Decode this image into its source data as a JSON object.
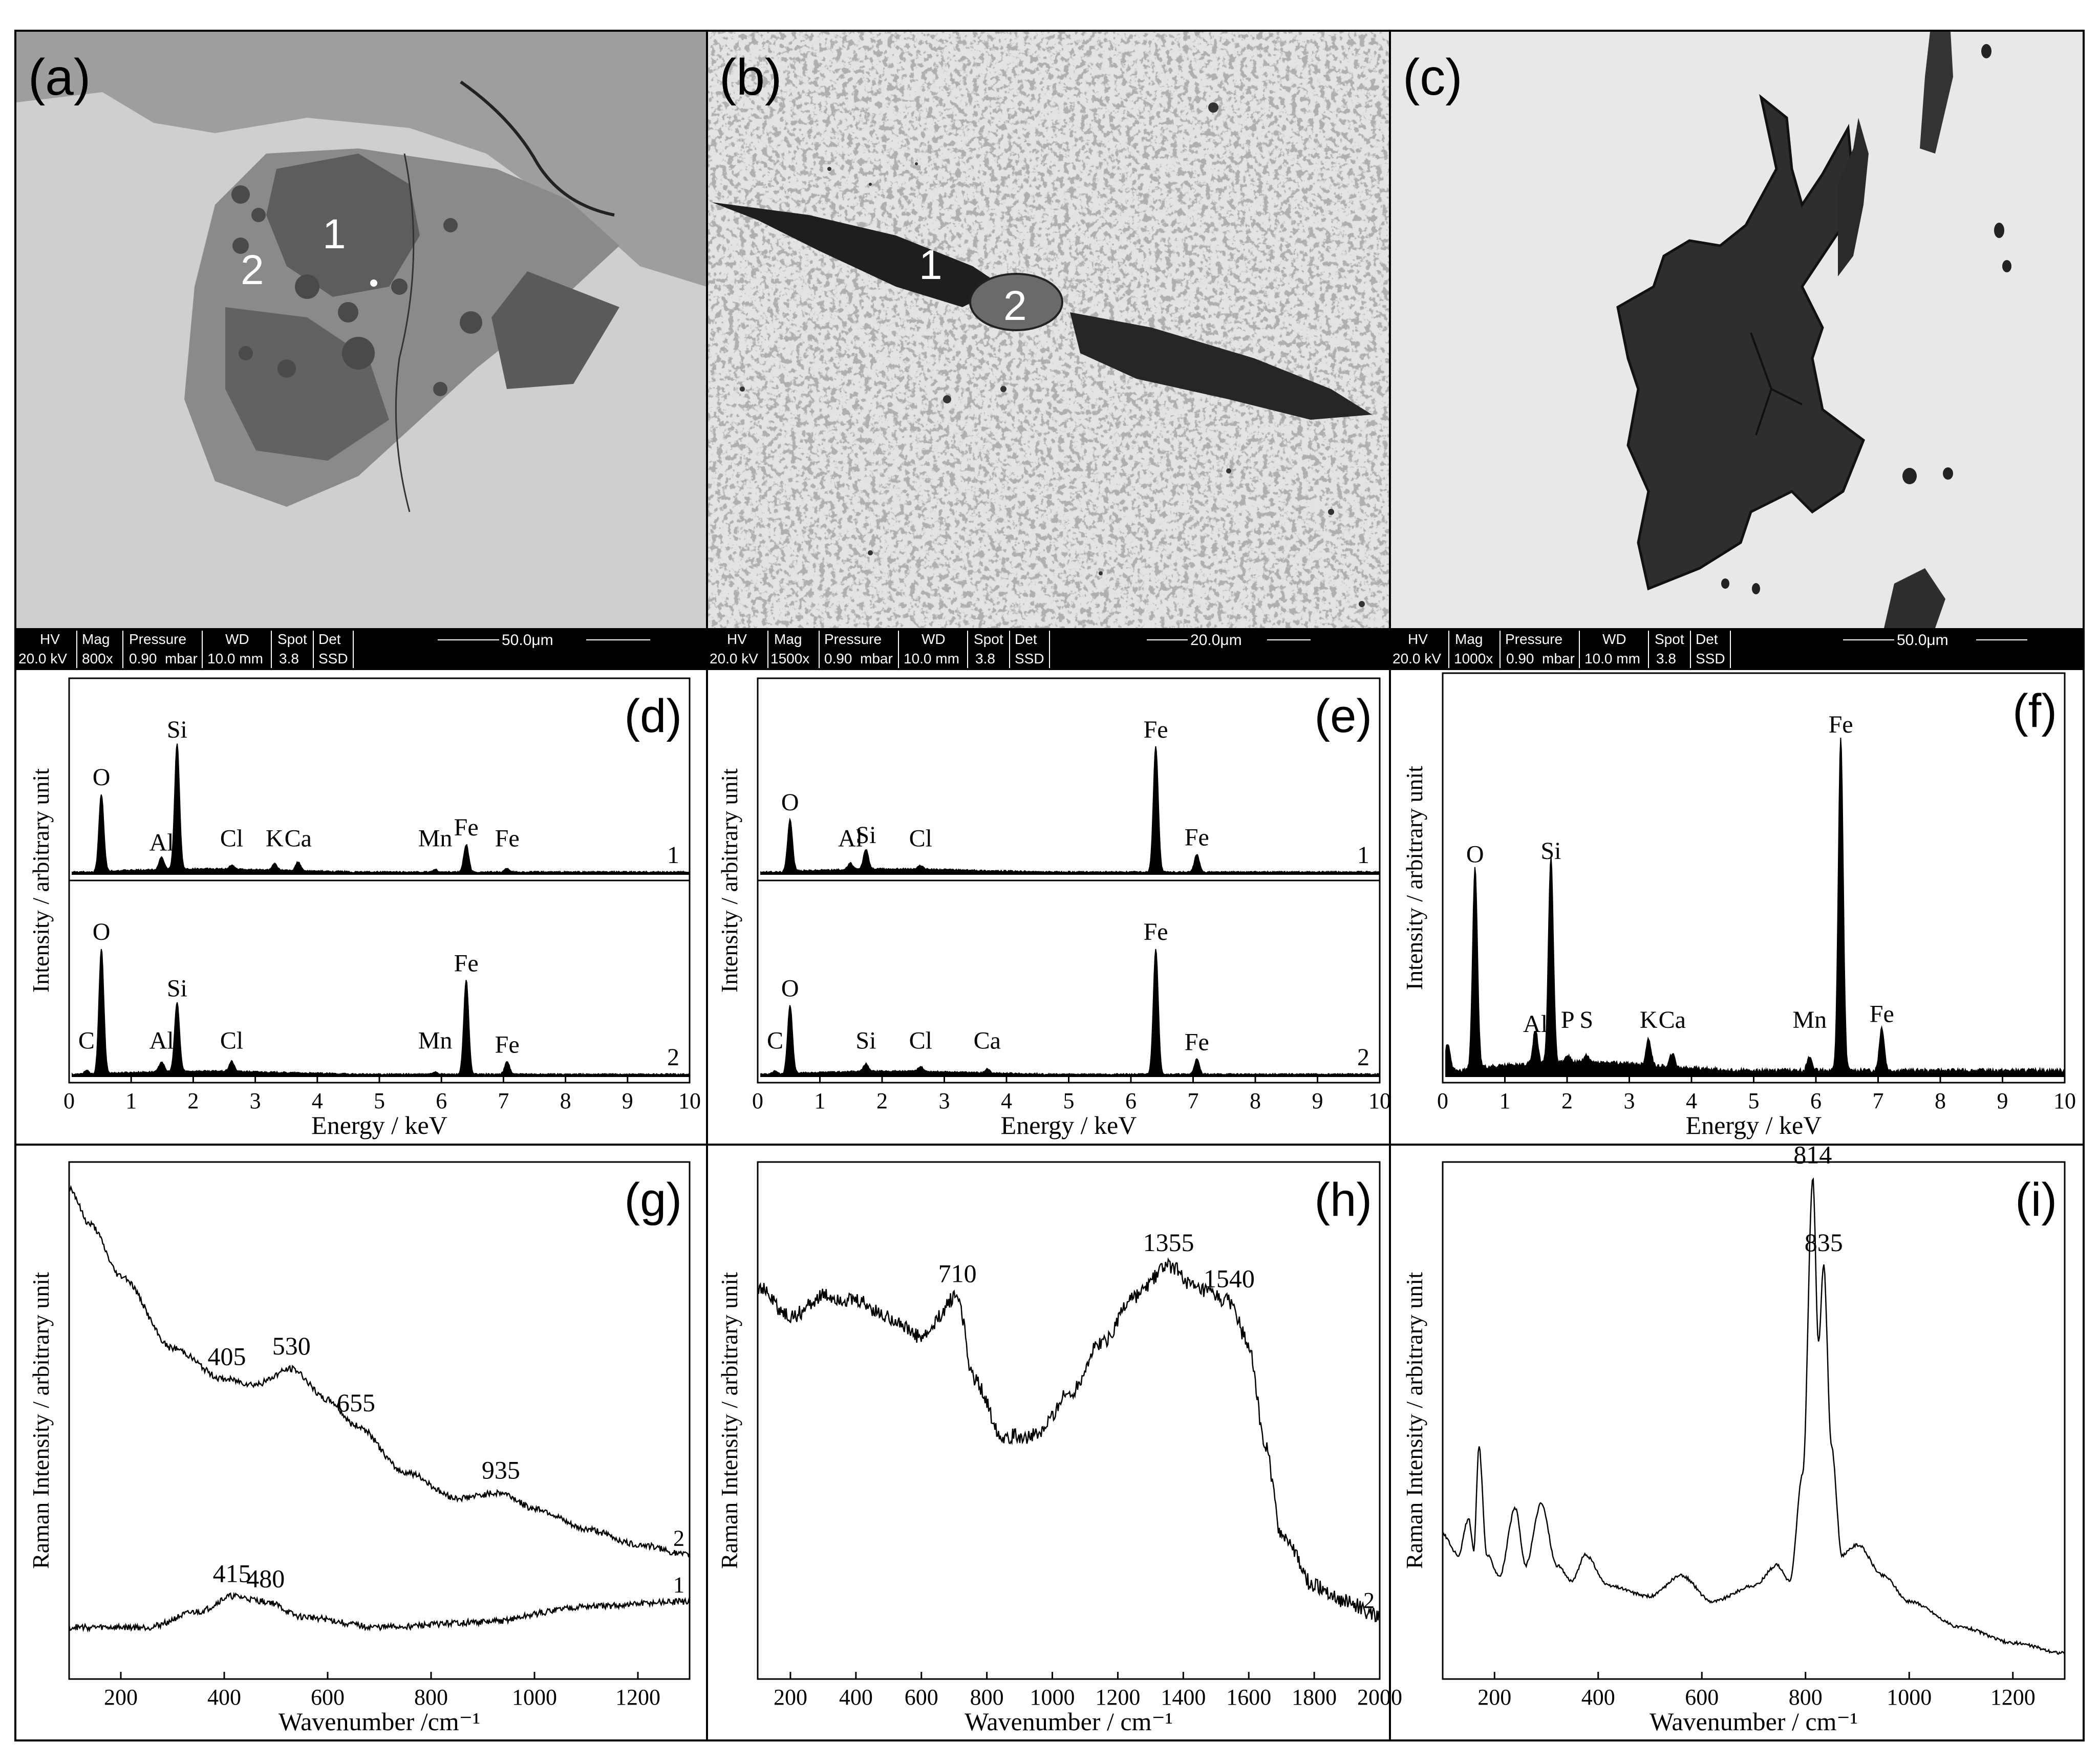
{
  "figure": {
    "panels": {
      "a": {
        "label": "(a)",
        "markers": [
          "1",
          "2"
        ],
        "bar": {
          "hv": "HV",
          "mag": "Mag",
          "pressure": "Pressure",
          "wd": "WD",
          "spot": "Spot",
          "det": "Det",
          "hv_v": "20.0 kV",
          "mag_v": "800x",
          "pressure_v": "0.90",
          "pressure_u": "mbar",
          "wd_v": "10.0 mm",
          "spot_v": "3.8",
          "det_v": "SSD",
          "scale": "50.0μm"
        }
      },
      "b": {
        "label": "(b)",
        "markers": [
          "1",
          "2"
        ],
        "bar": {
          "hv": "HV",
          "mag": "Mag",
          "pressure": "Pressure",
          "wd": "WD",
          "spot": "Spot",
          "det": "Det",
          "hv_v": "20.0 kV",
          "mag_v": "1500x",
          "pressure_v": "0.90",
          "pressure_u": "mbar",
          "wd_v": "10.0 mm",
          "spot_v": "3.8",
          "det_v": "SSD",
          "scale": "20.0μm"
        }
      },
      "c": {
        "label": "(c)",
        "bar": {
          "hv": "HV",
          "mag": "Mag",
          "pressure": "Pressure",
          "wd": "WD",
          "spot": "Spot",
          "det": "Det",
          "hv_v": "20.0 kV",
          "mag_v": "1000x",
          "pressure_v": "0.90",
          "pressure_u": "mbar",
          "wd_v": "10.0 mm",
          "spot_v": "3.8",
          "det_v": "SSD",
          "scale": "50.0μm"
        }
      }
    }
  },
  "chart_data": [
    {
      "id": "d",
      "panel_label": "(d)",
      "type": "line",
      "xlabel": "Energy / keV",
      "ylabel": "Intensity / arbitrary unit",
      "xlim": [
        0,
        10
      ],
      "xticks": [
        0,
        1,
        2,
        3,
        4,
        5,
        6,
        7,
        8,
        9,
        10
      ],
      "series": [
        {
          "name": "1",
          "peaks": [
            [
              0.52,
              0.62
            ],
            [
              1.49,
              0.1
            ],
            [
              1.74,
              1.0
            ],
            [
              2.62,
              0.03
            ],
            [
              3.31,
              0.05
            ],
            [
              3.69,
              0.07
            ],
            [
              5.9,
              0.02
            ],
            [
              6.4,
              0.22
            ],
            [
              7.06,
              0.03
            ]
          ],
          "peak_labels": [
            [
              "O",
              0.52
            ],
            [
              "Al",
              1.49
            ],
            [
              "Si",
              1.74
            ],
            [
              "Cl",
              2.62
            ],
            [
              "K",
              3.31
            ],
            [
              "Ca",
              3.69
            ],
            [
              "Mn",
              5.9
            ],
            [
              "Fe",
              6.4
            ],
            [
              "Fe",
              7.06
            ]
          ]
        },
        {
          "name": "2",
          "peaks": [
            [
              0.28,
              0.03
            ],
            [
              0.52,
              1.0
            ],
            [
              1.49,
              0.08
            ],
            [
              1.74,
              0.55
            ],
            [
              2.62,
              0.08
            ],
            [
              5.9,
              0.02
            ],
            [
              6.4,
              0.75
            ],
            [
              7.06,
              0.1
            ]
          ],
          "peak_labels": [
            [
              "C",
              0.28
            ],
            [
              "O",
              0.52
            ],
            [
              "Al",
              1.49
            ],
            [
              "Si",
              1.74
            ],
            [
              "Cl",
              2.62
            ],
            [
              "Mn",
              5.9
            ],
            [
              "Fe",
              6.4
            ],
            [
              "Fe",
              7.06
            ]
          ]
        }
      ]
    },
    {
      "id": "e",
      "panel_label": "(e)",
      "type": "line",
      "xlabel": "Energy / keV",
      "ylabel": "Intensity / arbitrary unit",
      "xlim": [
        0,
        10
      ],
      "xticks": [
        0,
        1,
        2,
        3,
        4,
        5,
        6,
        7,
        8,
        9,
        10
      ],
      "series": [
        {
          "name": "1",
          "peaks": [
            [
              0.52,
              0.42
            ],
            [
              1.49,
              0.05
            ],
            [
              1.74,
              0.16
            ],
            [
              2.62,
              0.03
            ],
            [
              6.4,
              1.0
            ],
            [
              7.06,
              0.14
            ]
          ],
          "peak_labels": [
            [
              "O",
              0.52
            ],
            [
              "Al",
              1.49
            ],
            [
              "Si",
              1.74
            ],
            [
              "Cl",
              2.62
            ],
            [
              "Fe",
              6.4
            ],
            [
              "Fe",
              7.06
            ]
          ]
        },
        {
          "name": "2",
          "peaks": [
            [
              0.28,
              0.03
            ],
            [
              0.52,
              0.55
            ],
            [
              1.74,
              0.06
            ],
            [
              2.62,
              0.04
            ],
            [
              3.69,
              0.03
            ],
            [
              6.4,
              1.0
            ],
            [
              7.06,
              0.12
            ]
          ],
          "peak_labels": [
            [
              "C",
              0.28
            ],
            [
              "O",
              0.52
            ],
            [
              "Si",
              1.74
            ],
            [
              "Cl",
              2.62
            ],
            [
              "Ca",
              3.69
            ],
            [
              "Fe",
              6.4
            ],
            [
              "Fe",
              7.06
            ]
          ]
        }
      ]
    },
    {
      "id": "f",
      "panel_label": "(f)",
      "type": "line",
      "xlabel": "Energy / keV",
      "ylabel": "Intensity / arbitrary unit",
      "xlim": [
        0,
        10
      ],
      "xticks": [
        0,
        1,
        2,
        3,
        4,
        5,
        6,
        7,
        8,
        9,
        10
      ],
      "series": [
        {
          "name": "",
          "peaks": [
            [
              0.08,
              0.08
            ],
            [
              0.52,
              0.61
            ],
            [
              1.49,
              0.1
            ],
            [
              1.74,
              0.62
            ],
            [
              2.01,
              0.02
            ],
            [
              2.31,
              0.02
            ],
            [
              3.31,
              0.08
            ],
            [
              3.69,
              0.04
            ],
            [
              5.9,
              0.04
            ],
            [
              6.4,
              1.0
            ],
            [
              7.06,
              0.13
            ]
          ],
          "peak_labels": [
            [
              "O",
              0.52
            ],
            [
              "Al",
              1.49
            ],
            [
              "Si",
              1.74
            ],
            [
              "P",
              2.01
            ],
            [
              "S",
              2.31
            ],
            [
              "K",
              3.31
            ],
            [
              "Ca",
              3.69
            ],
            [
              "Mn",
              5.9
            ],
            [
              "Fe",
              6.4
            ],
            [
              "Fe",
              7.06
            ]
          ]
        }
      ]
    },
    {
      "id": "g",
      "panel_label": "(g)",
      "type": "line",
      "xlabel": "Wavenumber /cm⁻¹",
      "ylabel": "Raman Intensity / arbitrary unit",
      "xlim": [
        100,
        1300
      ],
      "xticks": [
        200,
        400,
        600,
        800,
        1000,
        1200
      ],
      "series": [
        {
          "name": "2",
          "points": [
            [
              100,
              0.95
            ],
            [
              140,
              0.88
            ],
            [
              200,
              0.78
            ],
            [
              300,
              0.64
            ],
            [
              400,
              0.58
            ],
            [
              460,
              0.57
            ],
            [
              530,
              0.6
            ],
            [
              600,
              0.54
            ],
            [
              655,
              0.49
            ],
            [
              750,
              0.4
            ],
            [
              850,
              0.35
            ],
            [
              935,
              0.36
            ],
            [
              1000,
              0.33
            ],
            [
              1100,
              0.29
            ],
            [
              1200,
              0.26
            ],
            [
              1300,
              0.24
            ]
          ],
          "peak_labels": [
            [
              "405",
              405
            ],
            [
              "530",
              530
            ],
            [
              "655",
              655
            ],
            [
              "935",
              935
            ]
          ]
        },
        {
          "name": "1",
          "points": [
            [
              100,
              0.1
            ],
            [
              250,
              0.1
            ],
            [
              350,
              0.13
            ],
            [
              415,
              0.16
            ],
            [
              480,
              0.15
            ],
            [
              550,
              0.12
            ],
            [
              700,
              0.1
            ],
            [
              900,
              0.11
            ],
            [
              1100,
              0.14
            ],
            [
              1300,
              0.15
            ]
          ],
          "peak_labels": [
            [
              "415",
              415
            ],
            [
              "480",
              480
            ]
          ]
        }
      ]
    },
    {
      "id": "h",
      "panel_label": "(h)",
      "type": "line",
      "xlabel": "Wavenumber / cm⁻¹",
      "ylabel": "Raman Intensity / arbitrary unit",
      "xlim": [
        100,
        2000
      ],
      "xticks": [
        200,
        400,
        600,
        800,
        1000,
        1200,
        1400,
        1600,
        1800,
        2000
      ],
      "series": [
        {
          "name": "2",
          "points": [
            [
              100,
              0.76
            ],
            [
              200,
              0.7
            ],
            [
              300,
              0.74
            ],
            [
              400,
              0.73
            ],
            [
              500,
              0.7
            ],
            [
              600,
              0.66
            ],
            [
              710,
              0.74
            ],
            [
              760,
              0.58
            ],
            [
              850,
              0.47
            ],
            [
              950,
              0.47
            ],
            [
              1050,
              0.55
            ],
            [
              1150,
              0.65
            ],
            [
              1250,
              0.74
            ],
            [
              1355,
              0.8
            ],
            [
              1450,
              0.75
            ],
            [
              1540,
              0.73
            ],
            [
              1600,
              0.65
            ],
            [
              1650,
              0.45
            ],
            [
              1700,
              0.28
            ],
            [
              1800,
              0.18
            ],
            [
              1900,
              0.15
            ],
            [
              2000,
              0.12
            ]
          ],
          "peak_labels": [
            [
              "710",
              710
            ],
            [
              "1355",
              1355
            ],
            [
              "1540",
              1540
            ]
          ]
        }
      ]
    },
    {
      "id": "i",
      "panel_label": "(i)",
      "type": "line",
      "xlabel": "Wavenumber / cm⁻¹",
      "ylabel": "Raman Intensity / arbitrary unit",
      "xlim": [
        100,
        1300
      ],
      "xticks": [
        200,
        400,
        600,
        800,
        1000,
        1200
      ],
      "series": [
        {
          "name": "",
          "points": [
            [
              100,
              0.28
            ],
            [
              130,
              0.24
            ],
            [
              150,
              0.31
            ],
            [
              160,
              0.25
            ],
            [
              170,
              0.45
            ],
            [
              185,
              0.24
            ],
            [
              210,
              0.2
            ],
            [
              240,
              0.33
            ],
            [
              260,
              0.22
            ],
            [
              290,
              0.34
            ],
            [
              320,
              0.22
            ],
            [
              350,
              0.19
            ],
            [
              375,
              0.24
            ],
            [
              420,
              0.18
            ],
            [
              500,
              0.16
            ],
            [
              560,
              0.2
            ],
            [
              620,
              0.15
            ],
            [
              700,
              0.18
            ],
            [
              745,
              0.22
            ],
            [
              770,
              0.19
            ],
            [
              795,
              0.4
            ],
            [
              814,
              0.97
            ],
            [
              825,
              0.65
            ],
            [
              835,
              0.8
            ],
            [
              850,
              0.45
            ],
            [
              870,
              0.24
            ],
            [
              900,
              0.26
            ],
            [
              950,
              0.2
            ],
            [
              1000,
              0.15
            ],
            [
              1100,
              0.1
            ],
            [
              1200,
              0.07
            ],
            [
              1300,
              0.05
            ]
          ],
          "peak_labels": [
            [
              "814",
              814
            ],
            [
              "835",
              835
            ]
          ]
        }
      ]
    }
  ]
}
